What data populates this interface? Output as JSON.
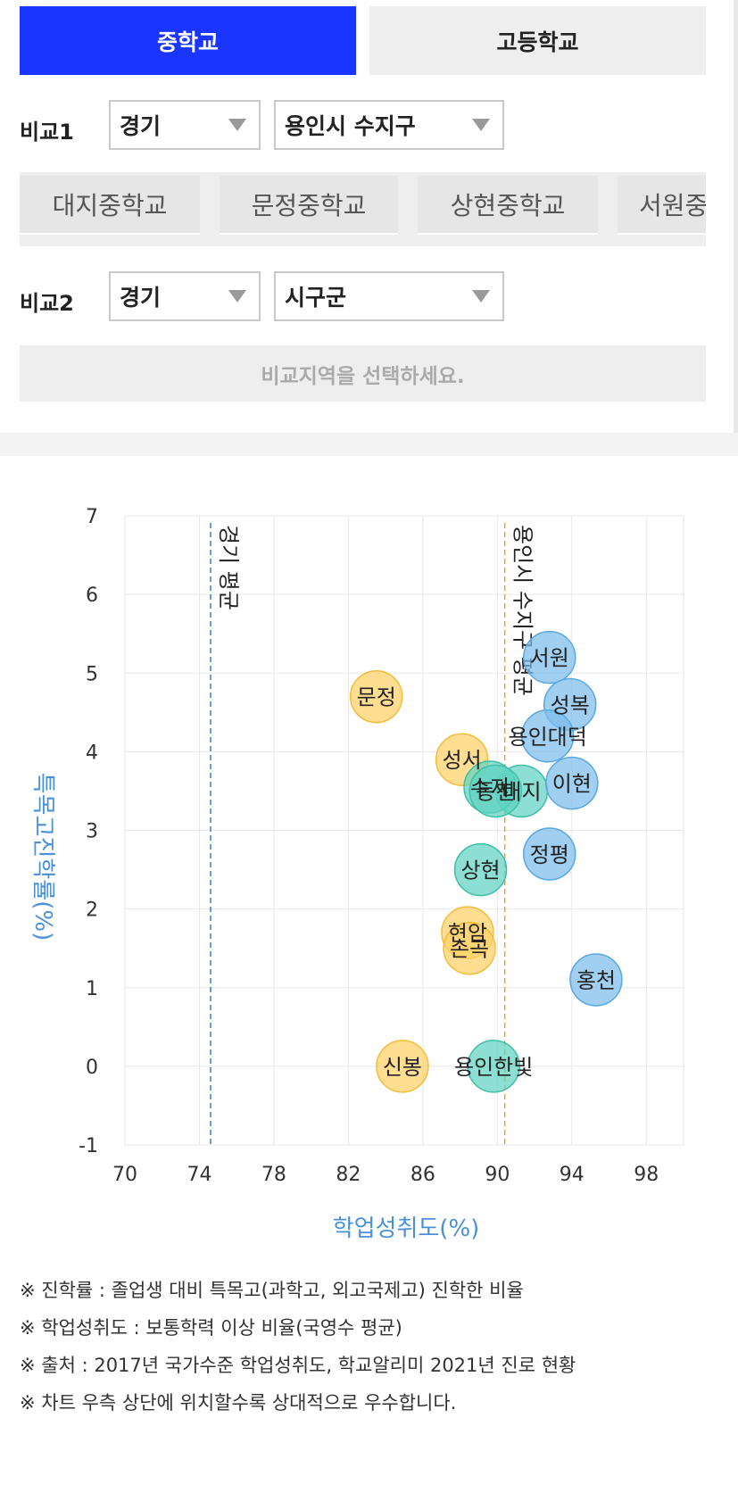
{
  "tabs": {
    "middle": "중학교",
    "high": "고등학교"
  },
  "compare1": {
    "label": "비교1",
    "region": "경기",
    "district": "용인시 수지구"
  },
  "schools": [
    "대지중학교",
    "문정중학교",
    "상현중학교",
    "서원중"
  ],
  "compare2": {
    "label": "비교2",
    "region": "경기",
    "district": "시구군"
  },
  "compare2_notice": "비교지역을 선택하세요.",
  "colors": {
    "tab_active": "#1a35ff",
    "axis_label": "#4a90d9",
    "yellow": "#ffd066",
    "teal": "#5fd3c0",
    "blue": "#7cbcec"
  },
  "chart_data": {
    "type": "scatter",
    "xlabel": "학업성취도(%)",
    "ylabel": "특목고진학률(%)",
    "xlim": [
      70,
      100
    ],
    "ylim": [
      -1,
      7
    ],
    "xticks": [
      70,
      74,
      78,
      82,
      86,
      90,
      94,
      98
    ],
    "yticks": [
      7,
      6,
      5,
      4,
      3,
      2,
      1,
      0,
      -1
    ],
    "grid": true,
    "reference_lines": [
      {
        "label": "경기 평균",
        "x": 74.6,
        "color": "#3a7bbf"
      },
      {
        "label": "용인시 수지구 평균",
        "x": 90.4,
        "color": "#f0a030"
      }
    ],
    "points": [
      {
        "label": "문정",
        "x": 83.5,
        "y": 4.7,
        "color": "yellow"
      },
      {
        "label": "성서",
        "x": 88.1,
        "y": 3.9,
        "color": "yellow"
      },
      {
        "label": "현암",
        "x": 88.4,
        "y": 1.7,
        "color": "yellow"
      },
      {
        "label": "손곡",
        "x": 88.5,
        "y": 1.5,
        "color": "yellow"
      },
      {
        "label": "신봉",
        "x": 84.9,
        "y": 0.0,
        "color": "yellow"
      },
      {
        "label": "대지",
        "x": 91.3,
        "y": 3.5,
        "color": "teal"
      },
      {
        "label": "수지",
        "x": 89.6,
        "y": 3.55,
        "color": "teal"
      },
      {
        "label": "동천",
        "x": 89.9,
        "y": 3.5,
        "color": "teal"
      },
      {
        "label": "상현",
        "x": 89.1,
        "y": 2.5,
        "color": "teal"
      },
      {
        "label": "용인한빛",
        "x": 89.8,
        "y": 0.0,
        "color": "teal"
      },
      {
        "label": "서원",
        "x": 92.8,
        "y": 5.2,
        "color": "blue"
      },
      {
        "label": "성복",
        "x": 93.9,
        "y": 4.6,
        "color": "blue"
      },
      {
        "label": "용인대덕",
        "x": 92.7,
        "y": 4.2,
        "color": "blue"
      },
      {
        "label": "이현",
        "x": 94.0,
        "y": 3.6,
        "color": "blue"
      },
      {
        "label": "정평",
        "x": 92.8,
        "y": 2.7,
        "color": "blue"
      },
      {
        "label": "홍천",
        "x": 95.3,
        "y": 1.1,
        "color": "blue"
      }
    ]
  },
  "notes": [
    "※ 진학률 : 졸업생 대비 특목고(과학고, 외고국제고) 진학한 비율",
    "※ 학업성취도 : 보통학력 이상 비율(국영수 평균)",
    "※ 출처 : 2017년 국가수준 학업성취도, 학교알리미 2021년 진로 현황",
    "※ 차트 우측 상단에 위치할수록 상대적으로 우수합니다."
  ]
}
